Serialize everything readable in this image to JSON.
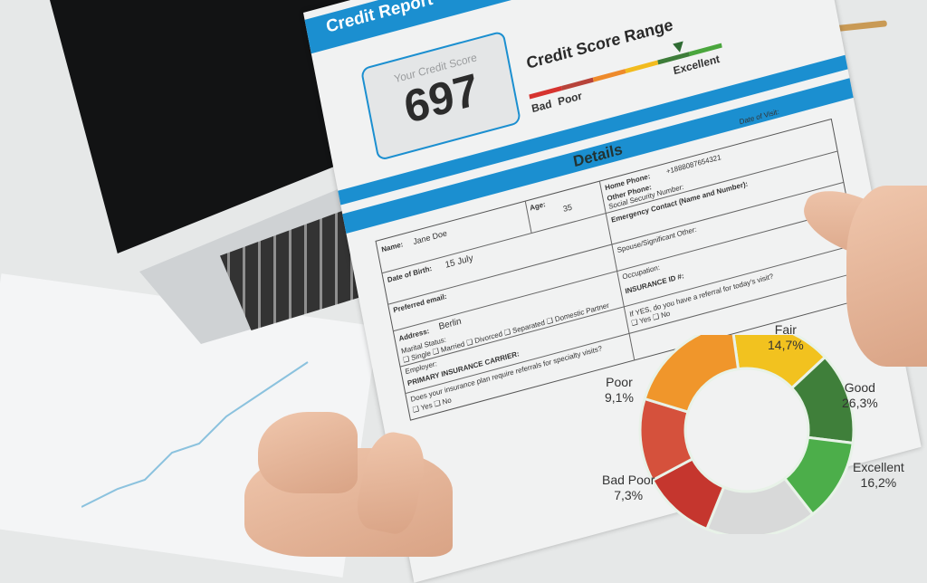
{
  "report": {
    "title": "Credit Report",
    "score_label": "Your Credit Score",
    "score": "697",
    "range_title": "Credit Score Range",
    "range_labels": {
      "bad": "Bad",
      "poor": "Poor",
      "excellent": "Excellent"
    },
    "range_colors": [
      "#d6332f",
      "#b7433a",
      "#ee8a2b",
      "#f2bb1e",
      "#3e7d3a",
      "#4aa63d"
    ],
    "details_title": "Details",
    "form": {
      "name_label": "Name:",
      "name_value": "Jane Doe",
      "age_label": "Age:",
      "age_value": "35",
      "dob_label": "Date of Birth:",
      "dob_value": "15 July",
      "email_label": "Preferred email:",
      "address_label": "Address:",
      "address_value": "Berlin",
      "marital_label": "Marital Status:",
      "marital_options": "❑ Single  ❑ Married  ❑ Divorced  ❑ Separated  ❑ Domestic Partner",
      "employer_label": "Employer:",
      "carrier_label": "PRIMARY INSURANCE CARRIER:",
      "referral_question": "Does your insurance plan require referrals for specialty visits?",
      "yes_no": "❑ Yes  ❑ No",
      "visit_label": "Date of Visit:",
      "home_phone_label": "Home Phone:",
      "home_phone_value": "+1888087654321",
      "other_phone_label": "Other Phone:",
      "ssn_label": "Social Security Number:",
      "emergency_label": "Emergency Contact (Name and Number):",
      "spouse_label": "Spouse/Significant Other:",
      "occupation_label": "Occupation:",
      "insurance_id_label": "INSURANCE ID #:",
      "referral_today": "If YES, do you have a referral for today's visit?",
      "yes_no_2": "❑ Yes  ❑ No"
    },
    "donut": {
      "labels": [
        {
          "name": "Fair",
          "value": "14,7%"
        },
        {
          "name": "Good",
          "value": "26,3%"
        },
        {
          "name": "Excellent",
          "value": "16,2%"
        },
        {
          "name": "Bad Poor",
          "value": "7,3%"
        },
        {
          "name": "Poor",
          "value": "9,1%"
        }
      ],
      "segment_colors": [
        "#f2c21f",
        "#3f7f3a",
        "#4cae4a",
        "#d8d9d9",
        "#c5362e",
        "#d5513c",
        "#f0962b"
      ]
    }
  }
}
